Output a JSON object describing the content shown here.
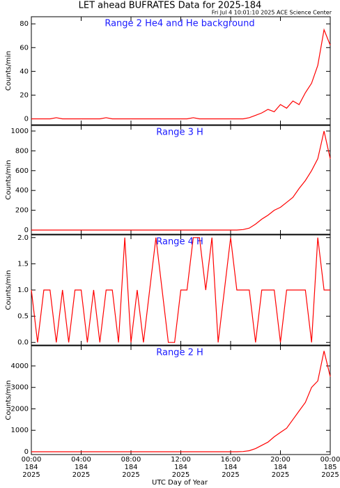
{
  "title": "LET ahead BUFRATES Data for 2025-184",
  "subtitle": "Fri Jul  4 10:01:10 2025 ACE Science Center",
  "x_label": "UTC Day of Year",
  "x": [
    0,
    0.5,
    1,
    1.5,
    2,
    2.5,
    3,
    3.5,
    4,
    4.5,
    5,
    5.5,
    6,
    6.5,
    7,
    7.5,
    8,
    8.5,
    9,
    9.5,
    10,
    10.5,
    11,
    11.5,
    12,
    12.5,
    13,
    13.5,
    14,
    14.5,
    15,
    15.5,
    16,
    16.5,
    17,
    17.5,
    18,
    18.5,
    19,
    19.5,
    20,
    20.5,
    21,
    21.5,
    22,
    22.5,
    23,
    23.5,
    24
  ],
  "xlim": [
    0,
    24
  ],
  "xticks": [
    {
      "value": 0,
      "label": "00:00"
    },
    {
      "value": 4,
      "label": "04:00"
    },
    {
      "value": 8,
      "label": "08:00"
    },
    {
      "value": 12,
      "label": "12:00"
    },
    {
      "value": 16,
      "label": "16:00"
    },
    {
      "value": 20,
      "label": "20:00"
    },
    {
      "value": 24,
      "label": "00:00"
    }
  ],
  "xtick_days": [
    "184",
    "184",
    "184",
    "184",
    "184",
    "184",
    "185"
  ],
  "xtick_years": [
    "2025",
    "2025",
    "2025",
    "2025",
    "2025",
    "2025",
    "2025"
  ],
  "chart_data": [
    {
      "type": "line",
      "title": "Range 2 He4 and He background",
      "y_label": "Counts/min",
      "color": "#ff0000",
      "ylim": [
        -5,
        86
      ],
      "yticks": [
        0,
        20,
        40,
        60,
        80
      ],
      "values": [
        0,
        0,
        0,
        0,
        1,
        0,
        0,
        0,
        0,
        0,
        0,
        0,
        1,
        0,
        0,
        0,
        0,
        0,
        0,
        0,
        0,
        0,
        0,
        0,
        0,
        0,
        1,
        0,
        0,
        0,
        0,
        0,
        0,
        0,
        0,
        1,
        3,
        5,
        8,
        6,
        12,
        9,
        15,
        12,
        22,
        30,
        45,
        75,
        62
      ]
    },
    {
      "type": "line",
      "title": "Range 3 H",
      "y_label": "Counts/min",
      "color": "#ff0000",
      "ylim": [
        -42,
        1056
      ],
      "yticks": [
        0,
        200,
        400,
        600,
        800,
        1000
      ],
      "values": [
        0,
        0,
        0,
        0,
        0,
        0,
        0,
        0,
        0,
        0,
        0,
        0,
        0,
        0,
        0,
        0,
        0,
        0,
        0,
        0,
        0,
        0,
        0,
        0,
        0,
        0,
        0,
        0,
        0,
        0,
        0,
        0,
        0,
        0,
        5,
        20,
        60,
        110,
        150,
        200,
        230,
        280,
        330,
        420,
        500,
        600,
        720,
        1000,
        720
      ]
    },
    {
      "type": "line",
      "title": "Range 4 H",
      "y_label": "Counts/min",
      "color": "#ff0000",
      "ylim": [
        -0.05,
        2.05
      ],
      "yticks": [
        {
          "value": 0,
          "label": "0.0"
        },
        0.5,
        {
          "value": 1,
          "label": "1.0"
        },
        1.5,
        {
          "value": 2,
          "label": "2.0"
        }
      ],
      "values": [
        1,
        0,
        1,
        1,
        0,
        1,
        0,
        1,
        1,
        0,
        1,
        0,
        1,
        1,
        0,
        2,
        0,
        1,
        0,
        1,
        2,
        1,
        0,
        0,
        1,
        1,
        2,
        2,
        1,
        2,
        0,
        1,
        2,
        1,
        1,
        1,
        0,
        1,
        1,
        1,
        0,
        1,
        1,
        1,
        1,
        0,
        2,
        1,
        1
      ]
    },
    {
      "type": "line",
      "title": "Range 2 H",
      "y_label": "Counts/min",
      "color": "#ff0000",
      "ylim": [
        -130,
        4940
      ],
      "yticks": [
        0,
        1000,
        2000,
        3000,
        4000
      ],
      "values": [
        0,
        0,
        0,
        0,
        0,
        0,
        0,
        0,
        0,
        0,
        0,
        0,
        0,
        0,
        0,
        0,
        0,
        0,
        0,
        0,
        0,
        0,
        0,
        0,
        0,
        0,
        0,
        0,
        0,
        0,
        0,
        0,
        0,
        0,
        10,
        50,
        150,
        300,
        450,
        700,
        900,
        1100,
        1500,
        1900,
        2300,
        3000,
        3300,
        4700,
        3500
      ]
    }
  ]
}
